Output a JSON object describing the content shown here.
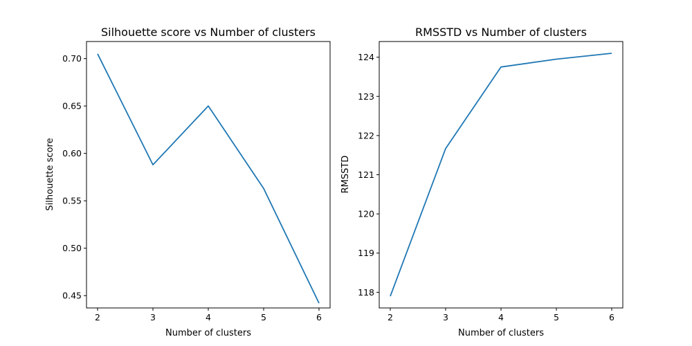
{
  "chart_data": [
    {
      "type": "line",
      "title": "Silhouette score vs Number of clusters",
      "xlabel": "Number of clusters",
      "ylabel": "Silhouette score",
      "xlim": [
        1.8,
        6.2
      ],
      "ylim": [
        0.437,
        0.718
      ],
      "xticks": [
        2,
        3,
        4,
        5,
        6
      ],
      "xtick_labels": [
        "2",
        "3",
        "4",
        "5",
        "6"
      ],
      "yticks": [
        0.45,
        0.5,
        0.55,
        0.6,
        0.65,
        0.7
      ],
      "ytick_labels": [
        "0.45",
        "0.50",
        "0.55",
        "0.60",
        "0.65",
        "0.70"
      ],
      "grid": false,
      "series": [
        {
          "x": [
            2,
            3,
            4,
            5,
            6
          ],
          "values": [
            0.705,
            0.588,
            0.65,
            0.563,
            0.442
          ],
          "color": "#1f77b4"
        }
      ]
    },
    {
      "type": "line",
      "title": "RMSSTD vs Number of clusters",
      "xlabel": "Number of clusters",
      "ylabel": "RMSSTD",
      "xlim": [
        1.8,
        6.2
      ],
      "ylim": [
        117.6,
        124.4
      ],
      "xticks": [
        2,
        3,
        4,
        5,
        6
      ],
      "xtick_labels": [
        "2",
        "3",
        "4",
        "5",
        "6"
      ],
      "yticks": [
        118,
        119,
        120,
        121,
        122,
        123,
        124
      ],
      "ytick_labels": [
        "118",
        "119",
        "120",
        "121",
        "122",
        "123",
        "124"
      ],
      "grid": false,
      "series": [
        {
          "x": [
            2,
            3,
            4,
            5,
            6
          ],
          "values": [
            117.9,
            121.67,
            123.75,
            123.95,
            124.1
          ],
          "color": "#1f77b4"
        }
      ]
    }
  ]
}
